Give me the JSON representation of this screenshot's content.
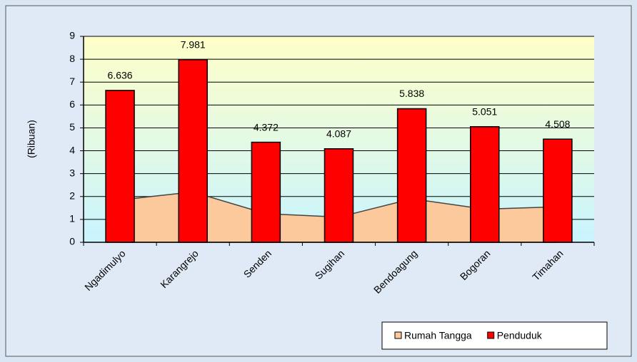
{
  "chart_data": {
    "type": "bar",
    "y_label": "(Ribuan)",
    "categories": [
      "Ngadimulyo",
      "Karangrejo",
      "Senden",
      "Sugihan",
      "Bendoagung",
      "Bogoran",
      "Timahan"
    ],
    "series": [
      {
        "name": "Rumah Tangga",
        "type": "area",
        "color": "#fbc99c",
        "values": [
          1.85,
          2.2,
          1.25,
          1.1,
          1.9,
          1.45,
          1.55
        ]
      },
      {
        "name": "Penduduk",
        "type": "bar",
        "color": "#ff0000",
        "values": [
          6.636,
          7.981,
          4.372,
          4.087,
          5.838,
          5.051,
          4.508
        ]
      }
    ],
    "ylim": [
      0,
      9
    ],
    "yticks": [
      0,
      1,
      2,
      3,
      4,
      5,
      6,
      7,
      8,
      9
    ],
    "grid": true,
    "legend": "bottom-right"
  }
}
